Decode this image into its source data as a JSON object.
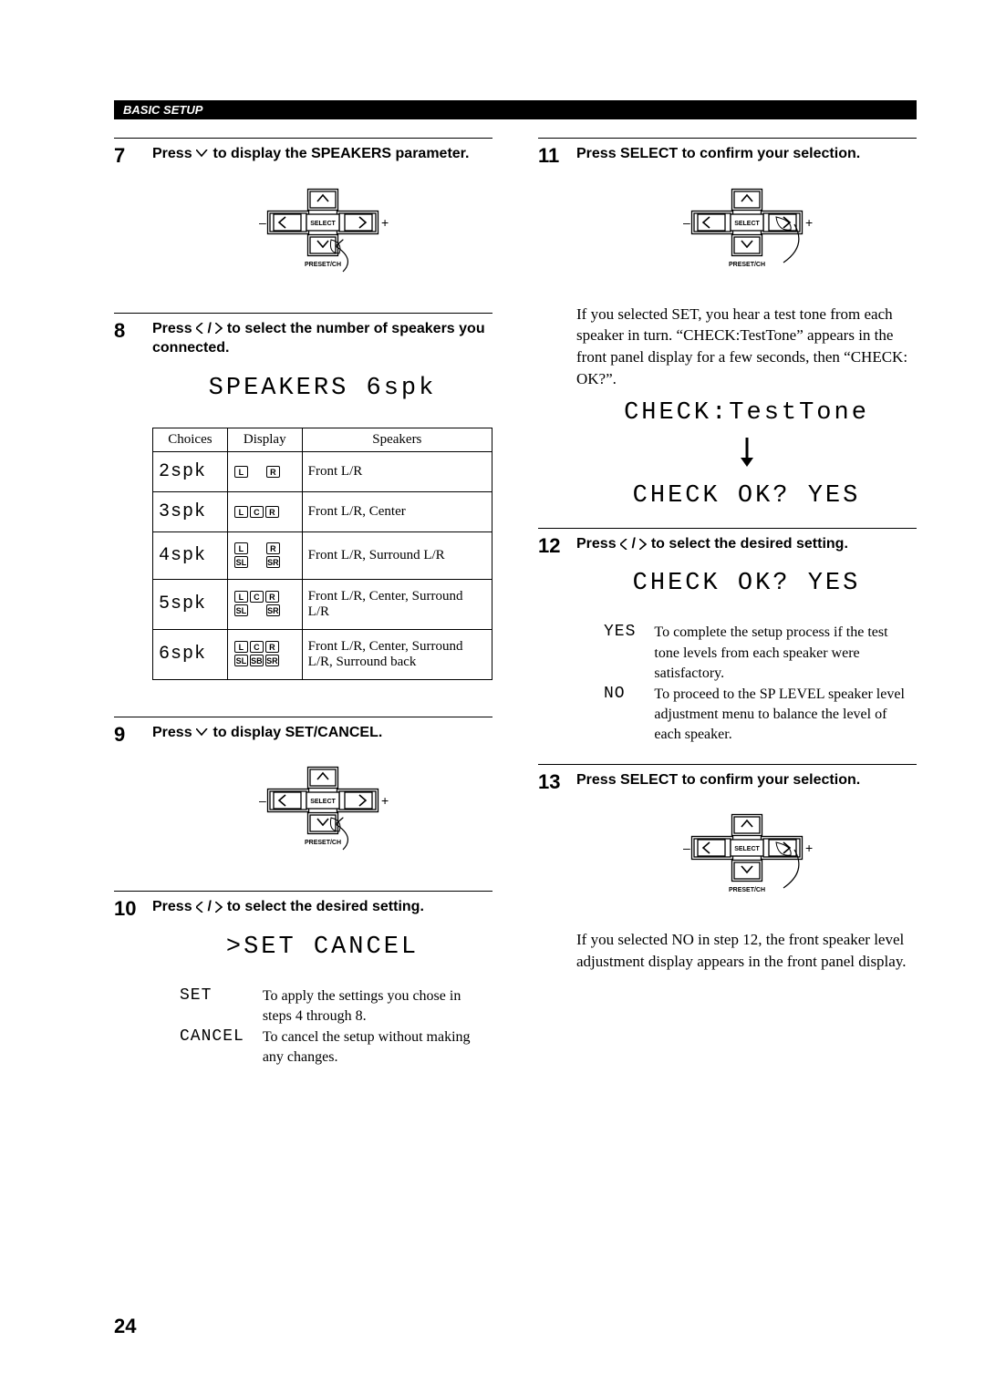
{
  "section_banner": "BASIC SETUP",
  "page_number": "24",
  "dpad": {
    "select_label": "SELECT",
    "preset_label": "PRESET/CH",
    "minus": "–",
    "plus": "+"
  },
  "left": {
    "step7": {
      "num": "7",
      "title_a": "Press ",
      "title_b": " to display the SPEAKERS parameter."
    },
    "step8": {
      "num": "8",
      "title_a": "Press ",
      "title_b": " to select the number of speakers you connected.",
      "lcd": "SPEAKERS  6spk",
      "table": {
        "headers": [
          "Choices",
          "Display",
          "Speakers"
        ],
        "rows": [
          {
            "choice": "2spk",
            "icons": [
              [
                "L",
                "R"
              ]
            ],
            "speakers": "Front L/R"
          },
          {
            "choice": "3spk",
            "icons": [
              [
                "L",
                "C",
                "R"
              ]
            ],
            "speakers": "Front L/R, Center"
          },
          {
            "choice": "4spk",
            "icons": [
              [
                "L",
                "R"
              ],
              [
                "SL",
                "SR"
              ]
            ],
            "speakers": "Front L/R, Surround L/R"
          },
          {
            "choice": "5spk",
            "icons": [
              [
                "L",
                "C",
                "R"
              ],
              [
                "SL",
                "SR"
              ]
            ],
            "speakers": "Front L/R, Center, Surround L/R"
          },
          {
            "choice": "6spk",
            "icons": [
              [
                "L",
                "C",
                "R"
              ],
              [
                "SL",
                "SB",
                "SR"
              ]
            ],
            "speakers": "Front L/R, Center, Surround L/R, Surround back"
          }
        ]
      }
    },
    "step9": {
      "num": "9",
      "title_a": "Press ",
      "title_b": " to display SET/CANCEL."
    },
    "step10": {
      "num": "10",
      "title_a": "Press ",
      "title_b": " to select the desired setting.",
      "lcd": ">SET  CANCEL",
      "options": [
        {
          "key": "SET",
          "val": "To apply the settings you chose in steps 4 through 8."
        },
        {
          "key": "CANCEL",
          "val": "To cancel the setup without making any changes."
        }
      ]
    }
  },
  "right": {
    "step11": {
      "num": "11",
      "title": "Press SELECT to confirm your selection.",
      "para": "If you selected SET, you hear a test tone from each speaker in turn. “CHECK:TestTone” appears in the front panel display for a few seconds, then “CHECK: OK?”.",
      "lcd1": "CHECK:TestTone",
      "lcd2": "CHECK OK?  YES"
    },
    "step12": {
      "num": "12",
      "title_a": "Press ",
      "title_b": " to select the desired setting.",
      "lcd": "CHECK OK?  YES",
      "options": [
        {
          "key": "YES",
          "val": "To complete the setup process if the test tone levels from each speaker were satisfactory."
        },
        {
          "key": "NO",
          "val": "To proceed to the SP LEVEL speaker level adjustment menu to balance the level of each speaker."
        }
      ]
    },
    "step13": {
      "num": "13",
      "title": "Press SELECT to confirm your selection.",
      "para": "If you selected NO in step 12, the front speaker level adjustment display appears in the front panel display."
    }
  }
}
